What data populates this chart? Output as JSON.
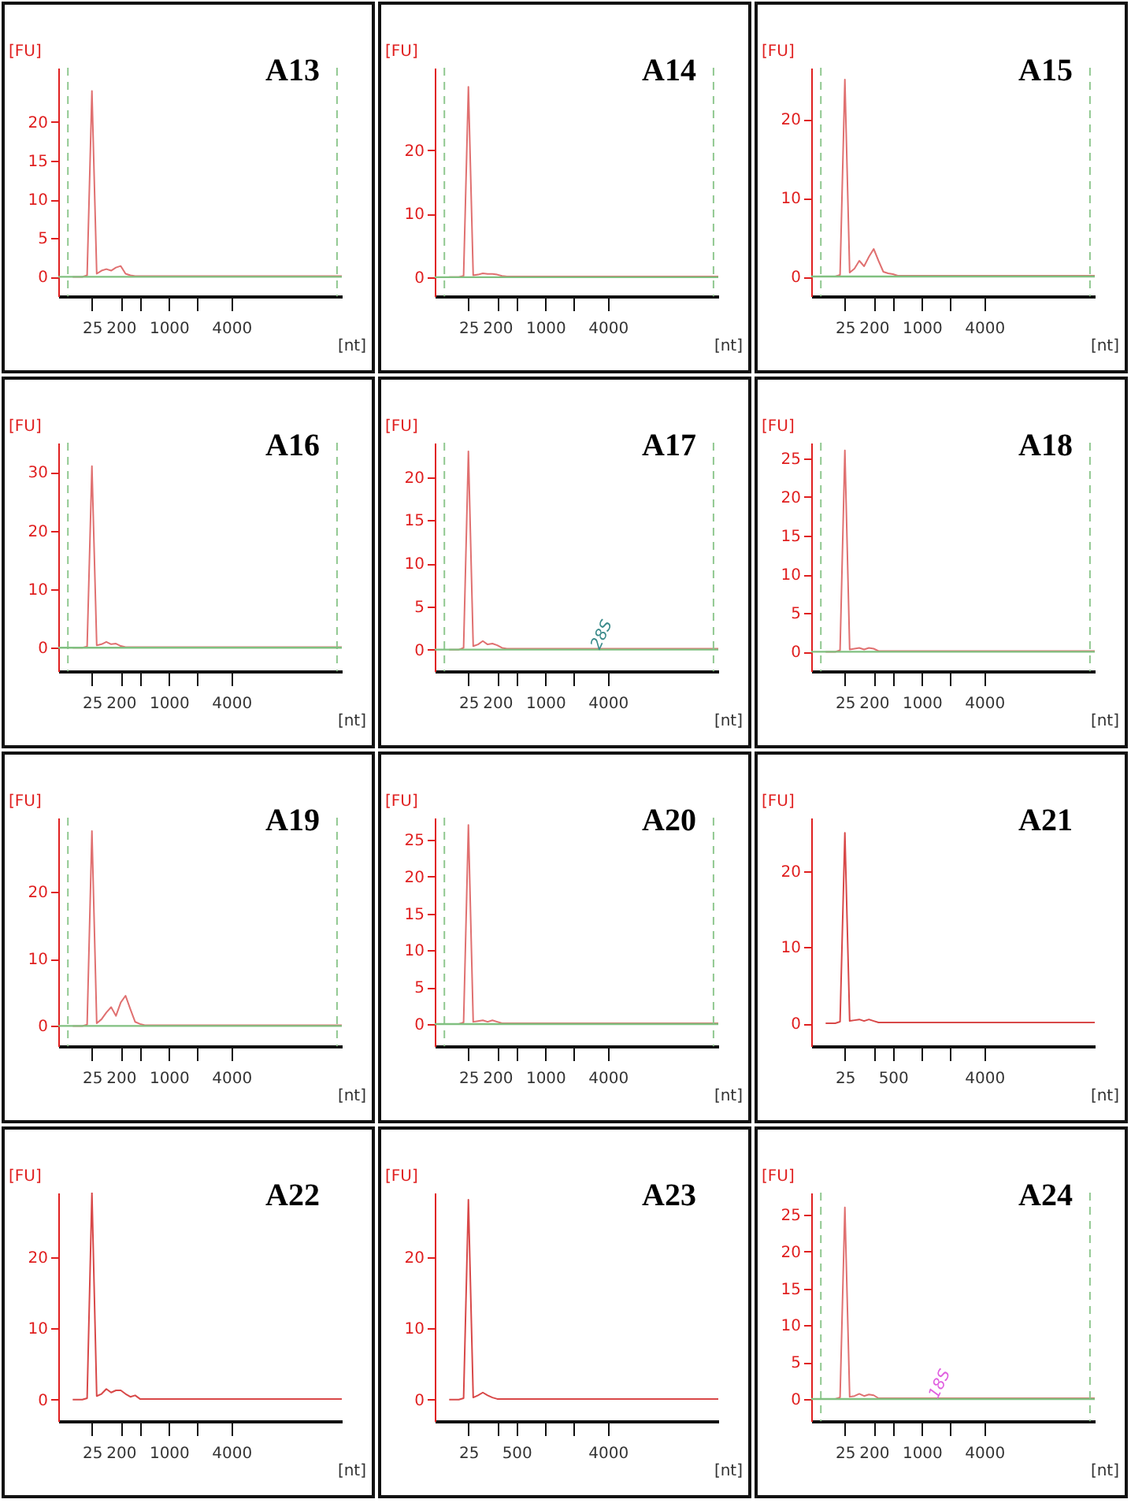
{
  "chart_data": [
    {
      "type": "line",
      "title": "A13",
      "xlabel": "[nt]",
      "ylabel": "[FU]",
      "ylim": [
        -2.5,
        27
      ],
      "yticks": [
        0,
        5,
        10,
        15,
        20
      ],
      "categories": [
        null,
        null,
        null,
        null,
        null,
        null,
        null,
        "25",
        null,
        null,
        null,
        null,
        null,
        "200",
        null,
        null,
        null,
        null,
        null,
        null,
        null,
        null,
        null,
        "1000",
        null,
        null,
        null,
        null,
        null,
        null,
        null,
        null,
        null,
        null,
        null,
        null,
        "4000",
        null,
        null,
        null,
        null,
        null,
        null,
        null,
        null,
        null,
        null,
        null,
        null,
        null,
        null,
        null,
        null,
        null,
        null,
        null,
        null,
        null,
        null,
        null
      ],
      "series": [
        {
          "color": "#e07070",
          "values": [
            null,
            null,
            null,
            0,
            0,
            0,
            0.2,
            24,
            0.4,
            0.8,
            1,
            0.8,
            1.2,
            1.4,
            0.4,
            0.2,
            0.1,
            0.1,
            0.1,
            0.1,
            0.1,
            0.1,
            0.1,
            0.1,
            0.1,
            0.1,
            0.1,
            0.1,
            0.1,
            0.1,
            0.1,
            0.1,
            0.1,
            0.1,
            0.1,
            0.1,
            0.1,
            0.1,
            0.1,
            0.1,
            0.1,
            0.1,
            0.1,
            0.1,
            0.1,
            0.1,
            0.1,
            0.1,
            0.1,
            0.1,
            0.1,
            0.1,
            0.1,
            0.1,
            0.1,
            0.1,
            0.1,
            0.1,
            0.1,
            0.1
          ]
        }
      ],
      "ref_lines": [
        {
          "axis": "y",
          "value": 0,
          "color": "#80c080",
          "line_style": "solid"
        }
      ]
    },
    {
      "type": "line",
      "title": "A14",
      "xlabel": "[nt]",
      "ylabel": "[FU]",
      "ylim": [
        -3,
        33
      ],
      "yticks": [
        0,
        10,
        20
      ],
      "categories": [
        null,
        null,
        null,
        null,
        null,
        null,
        null,
        "25",
        null,
        null,
        null,
        null,
        null,
        "200",
        null,
        null,
        null,
        null,
        null,
        null,
        null,
        null,
        null,
        "1000",
        null,
        null,
        null,
        null,
        null,
        null,
        null,
        null,
        null,
        null,
        null,
        null,
        "4000",
        null,
        null,
        null,
        null,
        null,
        null,
        null,
        null,
        null,
        null,
        null,
        null,
        null,
        null,
        null,
        null,
        null,
        null,
        null,
        null,
        null,
        null,
        null
      ],
      "series": [
        {
          "color": "#e07070",
          "values": [
            null,
            null,
            null,
            0,
            0,
            0,
            0.2,
            30,
            0.3,
            0.4,
            0.6,
            0.5,
            0.5,
            0.4,
            0.2,
            0.1,
            0.1,
            0.1,
            0.1,
            0.1,
            0.1,
            0.1,
            0.1,
            0.1,
            0.1,
            0.1,
            0.1,
            0.1,
            0.1,
            0.1,
            0.1,
            0.1,
            0.1,
            0.1,
            0.1,
            0.1,
            0.1,
            0.1,
            0.1,
            0.1,
            0.1,
            0.1,
            0.1,
            0.1,
            0.1,
            0.1,
            0.1,
            0.1,
            0.1,
            0.1,
            0.1,
            0.1,
            0.1,
            0.1,
            0.1,
            0.1,
            0.1,
            0.1,
            0.1,
            0.1
          ]
        }
      ],
      "ref_lines": [
        {
          "axis": "y",
          "value": 0,
          "color": "#80c080",
          "line_style": "solid"
        }
      ]
    },
    {
      "type": "line",
      "title": "A15",
      "xlabel": "[nt]",
      "ylabel": "[FU]",
      "ylim": [
        -2.5,
        26.5
      ],
      "yticks": [
        0,
        10,
        20
      ],
      "categories": [
        null,
        null,
        null,
        null,
        null,
        null,
        null,
        "25",
        null,
        null,
        null,
        null,
        null,
        "200",
        null,
        null,
        null,
        null,
        null,
        null,
        null,
        null,
        null,
        "1000",
        null,
        null,
        null,
        null,
        null,
        null,
        null,
        null,
        null,
        null,
        null,
        null,
        "4000",
        null,
        null,
        null,
        null,
        null,
        null,
        null,
        null,
        null,
        null,
        null,
        null,
        null,
        null,
        null,
        null,
        null,
        null,
        null,
        null,
        null,
        null,
        null
      ],
      "series": [
        {
          "color": "#e07070",
          "values": [
            null,
            null,
            null,
            0,
            0,
            0,
            0.2,
            25,
            0.5,
            1,
            2,
            1.3,
            2.5,
            3.5,
            2,
            0.6,
            0.4,
            0.3,
            0.1,
            0.1,
            0.1,
            0.1,
            0.1,
            0.1,
            0.1,
            0.1,
            0.1,
            0.1,
            0.1,
            0.1,
            0.1,
            0.1,
            0.1,
            0.1,
            0.1,
            0.1,
            0.1,
            0.1,
            0.1,
            0.1,
            0.1,
            0.1,
            0.1,
            0.1,
            0.1,
            0.1,
            0.1,
            0.1,
            0.1,
            0.1,
            0.1,
            0.1,
            0.1,
            0.1,
            0.1,
            0.1,
            0.1,
            0.1,
            0.1,
            0.1
          ]
        }
      ],
      "ref_lines": [
        {
          "axis": "y",
          "value": 0,
          "color": "#80c080",
          "line_style": "solid"
        }
      ]
    },
    {
      "type": "line",
      "title": "A16",
      "xlabel": "[nt]",
      "ylabel": "[FU]",
      "ylim": [
        -4,
        35
      ],
      "yticks": [
        0,
        10,
        20,
        30
      ],
      "categories": [
        null,
        null,
        null,
        null,
        null,
        null,
        null,
        "25",
        null,
        null,
        null,
        null,
        null,
        "200",
        null,
        null,
        null,
        null,
        null,
        null,
        null,
        null,
        null,
        "1000",
        null,
        null,
        null,
        null,
        null,
        null,
        null,
        null,
        null,
        null,
        null,
        null,
        "4000",
        null,
        null,
        null,
        null,
        null,
        null,
        null,
        null,
        null,
        null,
        null,
        null,
        null,
        null,
        null,
        null,
        null,
        null,
        null,
        null,
        null,
        null,
        null
      ],
      "series": [
        {
          "color": "#e07070",
          "values": [
            null,
            null,
            null,
            0,
            0,
            0,
            0.2,
            31,
            0.4,
            0.6,
            1,
            0.6,
            0.7,
            0.3,
            0.1,
            0.1,
            0.1,
            0.1,
            0.1,
            0.1,
            0.1,
            0.1,
            0.1,
            0.1,
            0.1,
            0.1,
            0.1,
            0.1,
            0.1,
            0.1,
            0.1,
            0.1,
            0.1,
            0.1,
            0.1,
            0.1,
            0.1,
            0.1,
            0.1,
            0.1,
            0.1,
            0.1,
            0.1,
            0.1,
            0.1,
            0.1,
            0.1,
            0.1,
            0.1,
            0.1,
            0.1,
            0.1,
            0.1,
            0.1,
            0.1,
            0.1,
            0.1,
            0.1,
            0.1,
            0.1
          ]
        }
      ],
      "ref_lines": [
        {
          "axis": "y",
          "value": 0,
          "color": "#80c080",
          "line_style": "solid"
        }
      ]
    },
    {
      "type": "line",
      "title": "A17",
      "xlabel": "[nt]",
      "ylabel": "[FU]",
      "ylim": [
        -2.5,
        24
      ],
      "yticks": [
        0,
        5,
        10,
        15,
        20
      ],
      "categories": [
        null,
        null,
        null,
        null,
        null,
        null,
        null,
        "25",
        null,
        null,
        null,
        null,
        null,
        "200",
        null,
        null,
        null,
        null,
        null,
        null,
        null,
        null,
        null,
        "1000",
        null,
        null,
        null,
        null,
        null,
        null,
        null,
        null,
        null,
        null,
        null,
        null,
        "4000",
        null,
        null,
        null,
        null,
        null,
        null,
        null,
        null,
        null,
        null,
        null,
        null,
        null,
        null,
        null,
        null,
        null,
        null,
        null,
        null,
        null,
        null,
        null
      ],
      "series": [
        {
          "color": "#e07070",
          "values": [
            null,
            null,
            null,
            0,
            0,
            0,
            0.2,
            23,
            0.4,
            0.6,
            1,
            0.6,
            0.7,
            0.5,
            0.2,
            0.1,
            0.1,
            0.1,
            0.1,
            0.1,
            0.1,
            0.1,
            0.1,
            0.1,
            0.1,
            0.1,
            0.1,
            0.1,
            0.1,
            0.1,
            0.1,
            0.1,
            0.1,
            0.1,
            0.1,
            0.1,
            0.1,
            0.1,
            0.1,
            0.1,
            0.1,
            0.1,
            0.1,
            0.1,
            0.1,
            0.1,
            0.1,
            0.1,
            0.1,
            0.1,
            0.1,
            0.1,
            0.1,
            0.1,
            0.1,
            0.1,
            0.1,
            0.1,
            0.1,
            0.1
          ]
        }
      ],
      "ref_lines": [
        {
          "axis": "y",
          "value": 0,
          "color": "#80c080",
          "line_style": "solid"
        }
      ],
      "annotations": [
        "28S"
      ]
    },
    {
      "type": "line",
      "title": "A18",
      "xlabel": "[nt]",
      "ylabel": "[FU]",
      "ylim": [
        -2.5,
        27
      ],
      "yticks": [
        0,
        5,
        10,
        15,
        20,
        25
      ],
      "categories": [
        null,
        null,
        null,
        null,
        null,
        null,
        null,
        "25",
        null,
        null,
        null,
        null,
        null,
        "200",
        null,
        null,
        null,
        null,
        null,
        null,
        null,
        null,
        null,
        "1000",
        null,
        null,
        null,
        null,
        null,
        null,
        null,
        null,
        null,
        null,
        null,
        null,
        "4000",
        null,
        null,
        null,
        null,
        null,
        null,
        null,
        null,
        null,
        null,
        null,
        null,
        null,
        null,
        null,
        null,
        null,
        null,
        null,
        null,
        null,
        null,
        null
      ],
      "series": [
        {
          "color": "#e07070",
          "values": [
            null,
            null,
            null,
            0,
            0,
            0,
            0.2,
            26,
            0.3,
            0.4,
            0.5,
            0.3,
            0.5,
            0.4,
            0.1,
            0.1,
            0.1,
            0.1,
            0.1,
            0.1,
            0.1,
            0.1,
            0.1,
            0.1,
            0.1,
            0.1,
            0.1,
            0.1,
            0.1,
            0.1,
            0.1,
            0.1,
            0.1,
            0.1,
            0.1,
            0.1,
            0.1,
            0.1,
            0.1,
            0.1,
            0.1,
            0.1,
            0.1,
            0.1,
            0.1,
            0.1,
            0.1,
            0.1,
            0.1,
            0.1,
            0.1,
            0.1,
            0.1,
            0.1,
            0.1,
            0.1,
            0.1,
            0.1,
            0.1,
            0.1
          ]
        }
      ],
      "ref_lines": [
        {
          "axis": "y",
          "value": 0,
          "color": "#80c080",
          "line_style": "solid"
        }
      ]
    },
    {
      "type": "line",
      "title": "A19",
      "xlabel": "[nt]",
      "ylabel": "[FU]",
      "ylim": [
        -3,
        31
      ],
      "yticks": [
        0,
        10,
        20
      ],
      "categories": [
        null,
        null,
        null,
        null,
        null,
        null,
        null,
        "25",
        null,
        null,
        null,
        null,
        null,
        "200",
        null,
        null,
        null,
        null,
        null,
        null,
        null,
        null,
        null,
        "1000",
        null,
        null,
        null,
        null,
        null,
        null,
        null,
        null,
        null,
        null,
        null,
        null,
        "4000",
        null,
        null,
        null,
        null,
        null,
        null,
        null,
        null,
        null,
        null,
        null,
        null,
        null,
        null,
        null,
        null,
        null,
        null,
        null,
        null,
        null,
        null,
        null
      ],
      "series": [
        {
          "color": "#e07070",
          "values": [
            null,
            null,
            null,
            0,
            0,
            0,
            0.2,
            29,
            0.4,
            1,
            2,
            2.8,
            1.5,
            3.5,
            4.5,
            2.5,
            0.6,
            0.3,
            0.1,
            0.1,
            0.1,
            0.1,
            0.1,
            0.1,
            0.1,
            0.1,
            0.1,
            0.1,
            0.1,
            0.1,
            0.1,
            0.1,
            0.1,
            0.1,
            0.1,
            0.1,
            0.1,
            0.1,
            0.1,
            0.1,
            0.1,
            0.1,
            0.1,
            0.1,
            0.1,
            0.1,
            0.1,
            0.1,
            0.1,
            0.1,
            0.1,
            0.1,
            0.1,
            0.1,
            0.1,
            0.1,
            0.1,
            0.1,
            0.1,
            0.1
          ]
        }
      ],
      "ref_lines": [
        {
          "axis": "y",
          "value": 0,
          "color": "#80c080",
          "line_style": "solid"
        }
      ]
    },
    {
      "type": "line",
      "title": "A20",
      "xlabel": "[nt]",
      "ylabel": "[FU]",
      "ylim": [
        -3,
        28
      ],
      "yticks": [
        0,
        5,
        10,
        15,
        20,
        25
      ],
      "categories": [
        null,
        null,
        null,
        null,
        null,
        null,
        null,
        "25",
        null,
        null,
        null,
        null,
        null,
        "200",
        null,
        null,
        null,
        null,
        null,
        null,
        null,
        null,
        null,
        "1000",
        null,
        null,
        null,
        null,
        null,
        null,
        null,
        null,
        null,
        null,
        null,
        null,
        "4000",
        null,
        null,
        null,
        null,
        null,
        null,
        null,
        null,
        null,
        null,
        null,
        null,
        null,
        null,
        null,
        null,
        null,
        null,
        null,
        null,
        null,
        null,
        null
      ],
      "series": [
        {
          "color": "#e07070",
          "values": [
            null,
            null,
            null,
            0,
            0,
            0,
            0.2,
            27,
            0.3,
            0.4,
            0.5,
            0.3,
            0.5,
            0.3,
            0.1,
            0.1,
            0.1,
            0.1,
            0.1,
            0.1,
            0.1,
            0.1,
            0.1,
            0.1,
            0.1,
            0.1,
            0.1,
            0.1,
            0.1,
            0.1,
            0.1,
            0.1,
            0.1,
            0.1,
            0.1,
            0.1,
            0.1,
            0.1,
            0.1,
            0.1,
            0.1,
            0.1,
            0.1,
            0.1,
            0.1,
            0.1,
            0.1,
            0.1,
            0.1,
            0.1,
            0.1,
            0.1,
            0.1,
            0.1,
            0.1,
            0.1,
            0.1,
            0.1,
            0.1,
            0.1
          ]
        }
      ],
      "ref_lines": [
        {
          "axis": "y",
          "value": 0,
          "color": "#80c080",
          "line_style": "solid"
        }
      ]
    },
    {
      "type": "line",
      "title": "A21",
      "xlabel": "[nt]",
      "ylabel": "[FU]",
      "ylim": [
        -3,
        27
      ],
      "yticks": [
        0,
        10,
        20
      ],
      "categories": [
        null,
        null,
        null,
        null,
        null,
        null,
        null,
        "25",
        null,
        null,
        null,
        null,
        null,
        null,
        null,
        null,
        null,
        "500",
        null,
        null,
        null,
        null,
        null,
        null,
        null,
        null,
        null,
        null,
        null,
        null,
        null,
        null,
        null,
        null,
        null,
        null,
        "4000",
        null,
        null,
        null,
        null,
        null,
        null,
        null,
        null,
        null,
        null,
        null,
        null,
        null,
        null,
        null,
        null,
        null,
        null,
        null,
        null,
        null,
        null,
        null
      ],
      "series": [
        {
          "color": "#d84848",
          "values": [
            null,
            null,
            null,
            0,
            0,
            0,
            0.2,
            25,
            0.3,
            0.4,
            0.5,
            0.3,
            0.5,
            0.3,
            0.1,
            0.1,
            0.1,
            0.1,
            0.1,
            0.1,
            0.1,
            0.1,
            0.1,
            0.1,
            0.1,
            0.1,
            0.1,
            0.1,
            0.1,
            0.1,
            0.1,
            0.1,
            0.1,
            0.1,
            0.1,
            0.1,
            0.1,
            0.1,
            0.1,
            0.1,
            0.1,
            0.1,
            0.1,
            0.1,
            0.1,
            0.1,
            0.1,
            0.1,
            0.1,
            0.1,
            0.1,
            0.1,
            0.1,
            0.1,
            0.1,
            0.1,
            0.1,
            0.1,
            0.1,
            0.1
          ]
        }
      ]
    },
    {
      "type": "line",
      "title": "A22",
      "xlabel": "[nt]",
      "ylabel": "[FU]",
      "ylim": [
        -3,
        29
      ],
      "yticks": [
        0,
        10,
        20
      ],
      "categories": [
        null,
        null,
        null,
        null,
        null,
        null,
        null,
        "25",
        null,
        null,
        null,
        null,
        null,
        "200",
        null,
        null,
        null,
        null,
        null,
        null,
        null,
        null,
        null,
        "1000",
        null,
        null,
        null,
        null,
        null,
        null,
        null,
        null,
        null,
        null,
        null,
        null,
        "4000",
        null,
        null,
        null,
        null,
        null,
        null,
        null,
        null,
        null,
        null,
        null,
        null,
        null,
        null,
        null,
        null,
        null,
        null,
        null,
        null,
        null,
        null,
        null
      ],
      "series": [
        {
          "color": "#d84848",
          "values": [
            null,
            null,
            null,
            0,
            0,
            0,
            0.2,
            29,
            0.5,
            0.8,
            1.5,
            1,
            1.3,
            1.3,
            0.8,
            0.4,
            0.6,
            0.1,
            0.1,
            0.1,
            0.1,
            0.1,
            0.1,
            0.1,
            0.1,
            0.1,
            0.1,
            0.1,
            0.1,
            0.1,
            0.1,
            0.1,
            0.1,
            0.1,
            0.1,
            0.1,
            0.1,
            0.1,
            0.1,
            0.1,
            0.1,
            0.1,
            0.1,
            0.1,
            0.1,
            0.1,
            0.1,
            0.1,
            0.1,
            0.1,
            0.1,
            0.1,
            0.1,
            0.1,
            0.1,
            0.1,
            0.1,
            0.1,
            0.1,
            0.1
          ]
        }
      ]
    },
    {
      "type": "line",
      "title": "A23",
      "xlabel": "[nt]",
      "ylabel": "[FU]",
      "ylim": [
        -3,
        29
      ],
      "yticks": [
        0,
        10,
        20
      ],
      "categories": [
        null,
        null,
        null,
        null,
        null,
        null,
        null,
        "25",
        null,
        null,
        null,
        null,
        null,
        null,
        null,
        null,
        null,
        "500",
        null,
        null,
        null,
        null,
        null,
        null,
        null,
        null,
        null,
        null,
        null,
        null,
        null,
        null,
        null,
        null,
        null,
        null,
        "4000",
        null,
        null,
        null,
        null,
        null,
        null,
        null,
        null,
        null,
        null,
        null,
        null,
        null,
        null,
        null,
        null,
        null,
        null,
        null,
        null,
        null,
        null,
        null
      ],
      "series": [
        {
          "color": "#d84848",
          "values": [
            null,
            null,
            null,
            0,
            0,
            0,
            0.2,
            28,
            0.3,
            0.6,
            1,
            0.6,
            0.3,
            0.1,
            0.1,
            0.1,
            0.1,
            0.1,
            0.1,
            0.1,
            0.1,
            0.1,
            0.1,
            0.1,
            0.1,
            0.1,
            0.1,
            0.1,
            0.1,
            0.1,
            0.1,
            0.1,
            0.1,
            0.1,
            0.1,
            0.1,
            0.1,
            0.1,
            0.1,
            0.1,
            0.1,
            0.1,
            0.1,
            0.1,
            0.1,
            0.1,
            0.1,
            0.1,
            0.1,
            0.1,
            0.1,
            0.1,
            0.1,
            0.1,
            0.1,
            0.1,
            0.1,
            0.1,
            0.1,
            0.1
          ]
        }
      ]
    },
    {
      "type": "line",
      "title": "A24",
      "xlabel": "[nt]",
      "ylabel": "[FU]",
      "ylim": [
        -3,
        28
      ],
      "yticks": [
        0,
        5,
        10,
        15,
        20,
        25
      ],
      "categories": [
        null,
        null,
        null,
        null,
        null,
        null,
        null,
        "25",
        null,
        null,
        null,
        null,
        null,
        "200",
        null,
        null,
        null,
        null,
        null,
        null,
        null,
        null,
        null,
        "1000",
        null,
        null,
        null,
        null,
        null,
        null,
        null,
        null,
        null,
        null,
        null,
        null,
        "4000",
        null,
        null,
        null,
        null,
        null,
        null,
        null,
        null,
        null,
        null,
        null,
        null,
        null,
        null,
        null,
        null,
        null,
        null,
        null,
        null,
        null,
        null,
        null
      ],
      "series": [
        {
          "color": "#e07070",
          "values": [
            null,
            null,
            null,
            0,
            0,
            0,
            0.2,
            26,
            0.3,
            0.4,
            0.7,
            0.4,
            0.6,
            0.5,
            0.1,
            0.1,
            0.1,
            0.1,
            0.1,
            0.1,
            0.1,
            0.1,
            0.1,
            0.1,
            0.1,
            0.1,
            0.1,
            0.1,
            0.1,
            0.1,
            0.1,
            0.1,
            0.1,
            0.1,
            0.1,
            0.1,
            0.1,
            0.1,
            0.1,
            0.1,
            0.1,
            0.1,
            0.1,
            0.1,
            0.1,
            0.1,
            0.1,
            0.1,
            0.1,
            0.1,
            0.1,
            0.1,
            0.1,
            0.1,
            0.1,
            0.1,
            0.1,
            0.1,
            0.1,
            0.1
          ]
        }
      ],
      "ref_lines": [
        {
          "axis": "y",
          "value": 0,
          "color": "#80c080",
          "line_style": "solid"
        }
      ],
      "annotations": [
        "18S"
      ]
    }
  ]
}
